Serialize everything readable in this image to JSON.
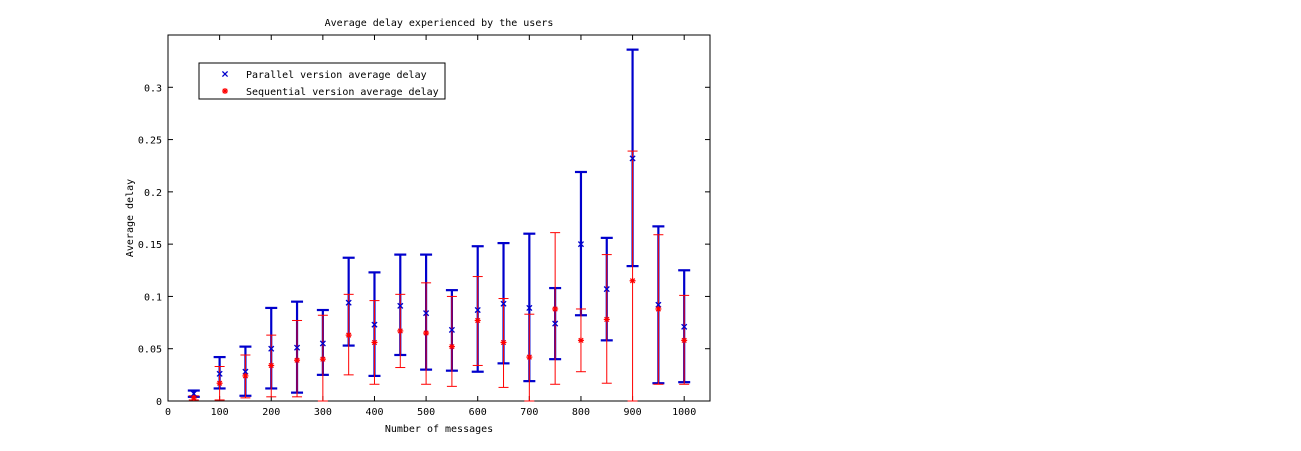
{
  "chart_data": {
    "type": "scatter",
    "title": "Average delay experienced by the users",
    "xlabel": "Number of messages",
    "ylabel": "Average delay",
    "xlim": [
      0,
      1050
    ],
    "ylim": [
      0,
      0.35
    ],
    "xticks": [
      0,
      100,
      200,
      300,
      400,
      500,
      600,
      700,
      800,
      900,
      1000
    ],
    "yticks": [
      0,
      0.05,
      0.1,
      0.15,
      0.2,
      0.25,
      0.3
    ],
    "ytick_labels": [
      "0",
      "0.05",
      "0.1",
      "0.15",
      "0.2",
      "0.25",
      "0.3"
    ],
    "grid": false,
    "legend_position": "top-left",
    "x": [
      50,
      100,
      150,
      200,
      250,
      300,
      350,
      400,
      450,
      500,
      550,
      600,
      650,
      700,
      750,
      800,
      850,
      900,
      950,
      1000
    ],
    "series": [
      {
        "name": "Parallel version average delay",
        "marker": "x",
        "color": "#0000cc",
        "values": [
          0.007,
          0.026,
          0.028,
          0.05,
          0.051,
          0.055,
          0.094,
          0.073,
          0.091,
          0.084,
          0.068,
          0.087,
          0.093,
          0.089,
          0.074,
          0.15,
          0.107,
          0.232,
          0.092,
          0.071
        ],
        "err_low": [
          0.004,
          0.012,
          0.005,
          0.012,
          0.008,
          0.025,
          0.053,
          0.024,
          0.044,
          0.03,
          0.029,
          0.028,
          0.036,
          0.019,
          0.04,
          0.082,
          0.058,
          0.129,
          0.017,
          0.018
        ],
        "err_high": [
          0.01,
          0.042,
          0.052,
          0.089,
          0.095,
          0.087,
          0.137,
          0.123,
          0.14,
          0.14,
          0.106,
          0.148,
          0.151,
          0.16,
          0.108,
          0.219,
          0.156,
          0.336,
          0.167,
          0.125
        ]
      },
      {
        "name": "Sequential version average delay",
        "marker": "*",
        "color": "#ff0000",
        "values": [
          0.003,
          0.017,
          0.024,
          0.034,
          0.039,
          0.04,
          0.063,
          0.056,
          0.067,
          0.065,
          0.052,
          0.077,
          0.056,
          0.042,
          0.088,
          0.058,
          0.078,
          0.115,
          0.088,
          0.058
        ],
        "err_low": [
          0.001,
          0.001,
          0.003,
          0.004,
          0.004,
          0.0,
          0.025,
          0.016,
          0.032,
          0.016,
          0.014,
          0.034,
          0.013,
          0.0,
          0.016,
          0.028,
          0.017,
          0.0,
          0.016,
          0.016
        ],
        "err_high": [
          0.005,
          0.033,
          0.044,
          0.063,
          0.077,
          0.082,
          0.102,
          0.096,
          0.102,
          0.113,
          0.1,
          0.119,
          0.098,
          0.083,
          0.161,
          0.088,
          0.14,
          0.239,
          0.159,
          0.101
        ]
      }
    ]
  }
}
